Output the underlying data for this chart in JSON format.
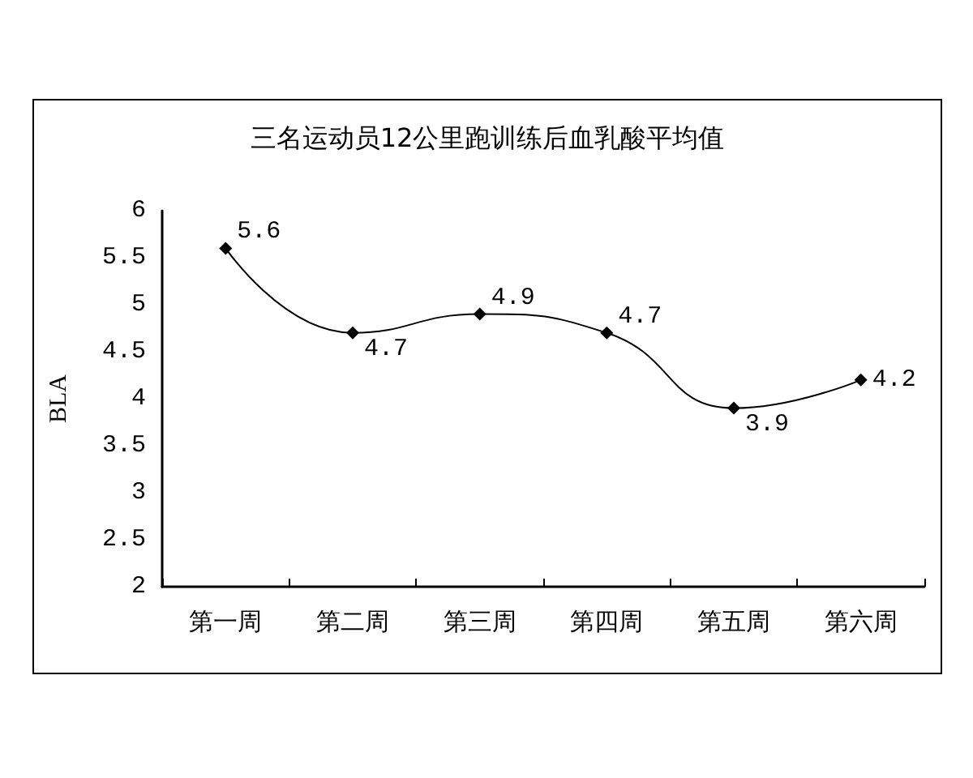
{
  "chart_data": {
    "type": "line",
    "title": "三名运动员12公里跑训练后血乳酸平均值",
    "ylabel": "BLA",
    "categories": [
      "第一周",
      "第二周",
      "第三周",
      "第四周",
      "第五周",
      "第六周"
    ],
    "values": [
      5.6,
      4.7,
      4.9,
      4.7,
      3.9,
      4.2
    ],
    "color": "#000000",
    "ylim": [
      2,
      6
    ],
    "yticks": [
      2,
      2.5,
      3,
      3.5,
      4,
      4.5,
      5,
      5.5,
      6
    ],
    "marker": "diamond",
    "line_style": "solid",
    "data_labels": true
  }
}
